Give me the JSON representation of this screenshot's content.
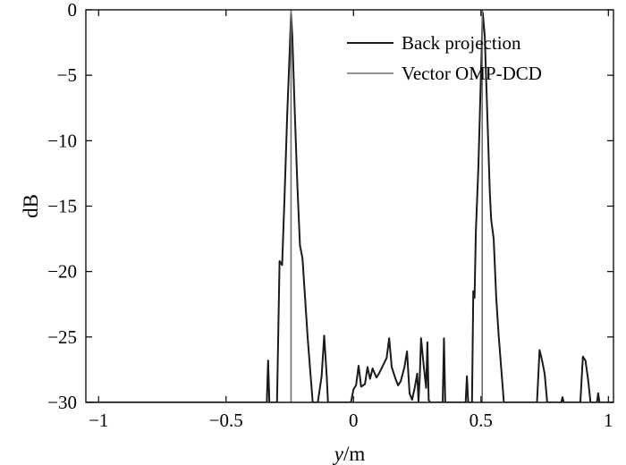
{
  "chart_data": {
    "type": "line",
    "xlabel_italic": "y",
    "xlabel_rest": "/m",
    "ylabel": "dB",
    "xlim": [
      -1.05,
      1.02
    ],
    "ylim": [
      -30,
      0
    ],
    "xticks": [
      -1,
      -0.5,
      0,
      0.5,
      1
    ],
    "yticks": [
      0,
      -5,
      -10,
      -15,
      -20,
      -25,
      -30
    ],
    "xtick_labels": [
      "−1",
      "−0.5",
      "0",
      "0.5",
      "1"
    ],
    "ytick_labels": [
      "0",
      "−5",
      "−10",
      "−15",
      "−20",
      "−25",
      "−30"
    ],
    "grid": false,
    "legend_position": "top-right",
    "series": [
      {
        "name": "Back projection",
        "color": "#1a1a1a",
        "points": [
          [
            -1.05,
            -30
          ],
          [
            -0.34,
            -30
          ],
          [
            -0.335,
            -26.8
          ],
          [
            -0.33,
            -30
          ],
          [
            -0.3,
            -30
          ],
          [
            -0.29,
            -19.2
          ],
          [
            -0.28,
            -19.5
          ],
          [
            -0.27,
            -14
          ],
          [
            -0.26,
            -8
          ],
          [
            -0.25,
            -3
          ],
          [
            -0.245,
            -0.3
          ],
          [
            -0.24,
            -2
          ],
          [
            -0.23,
            -8
          ],
          [
            -0.22,
            -13.5
          ],
          [
            -0.21,
            -18
          ],
          [
            -0.2,
            -19
          ],
          [
            -0.19,
            -22
          ],
          [
            -0.18,
            -25
          ],
          [
            -0.17,
            -27.5
          ],
          [
            -0.16,
            -30
          ],
          [
            -0.14,
            -30
          ],
          [
            -0.125,
            -28
          ],
          [
            -0.115,
            -24.9
          ],
          [
            -0.105,
            -28
          ],
          [
            -0.1,
            -30
          ],
          [
            -0.01,
            -30
          ],
          [
            0.0,
            -29
          ],
          [
            0.01,
            -28.7
          ],
          [
            0.02,
            -27.2
          ],
          [
            0.03,
            -28.8
          ],
          [
            0.045,
            -28.6
          ],
          [
            0.055,
            -27.3
          ],
          [
            0.065,
            -28.2
          ],
          [
            0.075,
            -27.4
          ],
          [
            0.09,
            -28.1
          ],
          [
            0.1,
            -27.8
          ],
          [
            0.115,
            -27.2
          ],
          [
            0.13,
            -26.6
          ],
          [
            0.14,
            -25.1
          ],
          [
            0.15,
            -27.3
          ],
          [
            0.165,
            -28.2
          ],
          [
            0.175,
            -28.7
          ],
          [
            0.185,
            -28.4
          ],
          [
            0.2,
            -27.3
          ],
          [
            0.21,
            -26.1
          ],
          [
            0.22,
            -29.3
          ],
          [
            0.23,
            -29.8
          ],
          [
            0.24,
            -28.9
          ],
          [
            0.25,
            -27.8
          ],
          [
            0.255,
            -29.9
          ],
          [
            0.26,
            -28.1
          ],
          [
            0.265,
            -25.1
          ],
          [
            0.275,
            -27.1
          ],
          [
            0.285,
            -28.9
          ],
          [
            0.29,
            -25.4
          ],
          [
            0.295,
            -29.8
          ],
          [
            0.3,
            -30
          ],
          [
            0.35,
            -30
          ],
          [
            0.355,
            -25.1
          ],
          [
            0.36,
            -30
          ],
          [
            0.4,
            -30
          ],
          [
            0.44,
            -30
          ],
          [
            0.445,
            -28
          ],
          [
            0.45,
            -30
          ],
          [
            0.465,
            -30
          ],
          [
            0.47,
            -21.5
          ],
          [
            0.475,
            -22
          ],
          [
            0.48,
            -17
          ],
          [
            0.49,
            -12
          ],
          [
            0.5,
            -5
          ],
          [
            0.507,
            -0.2
          ],
          [
            0.515,
            -2
          ],
          [
            0.525,
            -8
          ],
          [
            0.535,
            -14
          ],
          [
            0.54,
            -16
          ],
          [
            0.55,
            -17.5
          ],
          [
            0.56,
            -22
          ],
          [
            0.57,
            -25
          ],
          [
            0.58,
            -27.5
          ],
          [
            0.59,
            -30
          ],
          [
            0.72,
            -30
          ],
          [
            0.73,
            -26
          ],
          [
            0.74,
            -26.8
          ],
          [
            0.75,
            -27.8
          ],
          [
            0.76,
            -30
          ],
          [
            0.815,
            -30
          ],
          [
            0.82,
            -29.6
          ],
          [
            0.825,
            -30
          ],
          [
            0.89,
            -30
          ],
          [
            0.9,
            -26.5
          ],
          [
            0.91,
            -26.8
          ],
          [
            0.92,
            -28.2
          ],
          [
            0.93,
            -30
          ],
          [
            0.955,
            -30
          ],
          [
            0.96,
            -29.3
          ],
          [
            0.965,
            -30
          ],
          [
            1.02,
            -30
          ]
        ]
      },
      {
        "name": "Vector OMP-DCD",
        "color": "#6e6e6e",
        "points": [
          [
            -1.05,
            -30
          ],
          [
            -0.245,
            -30
          ],
          [
            -0.245,
            0
          ],
          [
            -0.245,
            -30
          ],
          [
            0.505,
            -30
          ],
          [
            0.505,
            0
          ],
          [
            0.505,
            -30
          ],
          [
            1.02,
            -30
          ]
        ]
      }
    ]
  }
}
